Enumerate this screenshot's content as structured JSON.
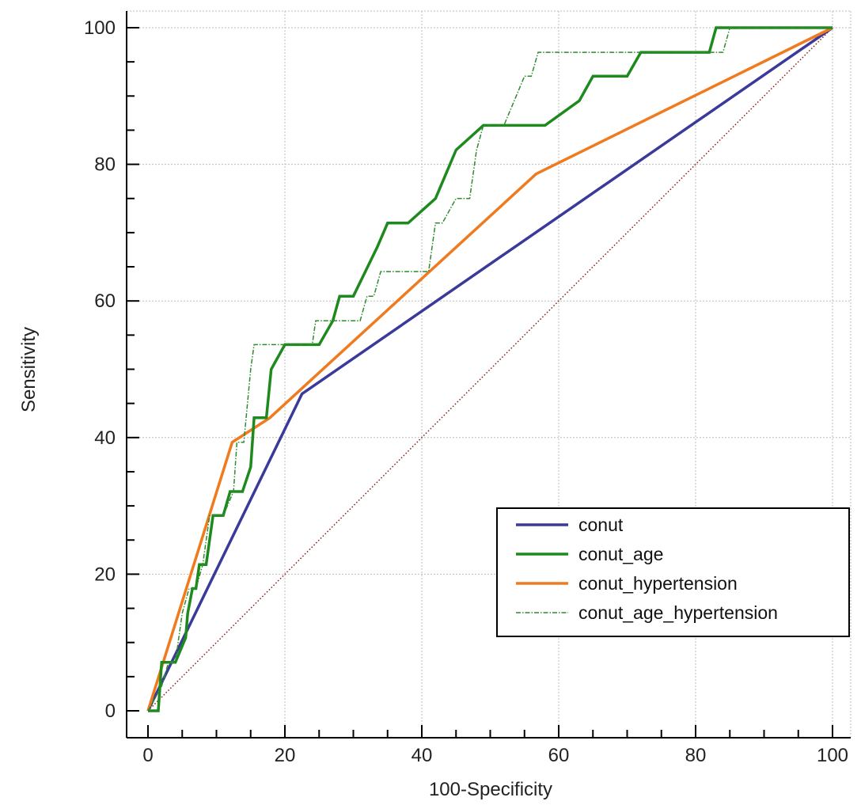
{
  "chart_data": {
    "type": "line",
    "title": "",
    "xlabel": "100-Specificity",
    "ylabel": "Sensitivity",
    "xlim": [
      0,
      100
    ],
    "ylim": [
      0,
      100
    ],
    "x_ticks": [
      "0",
      "20",
      "40",
      "60",
      "80",
      "100"
    ],
    "y_ticks": [
      "0",
      "20",
      "40",
      "60",
      "80",
      "100"
    ],
    "grid": true,
    "legend_position": "bottom-right",
    "reference_line": {
      "x": [
        0,
        100
      ],
      "y": [
        0,
        100
      ],
      "color": "#8b1a1a",
      "style": "dotted"
    },
    "series": [
      {
        "name": "conut",
        "color": "#3a3a9a",
        "style": "solid",
        "x": [
          0,
          22.5,
          100
        ],
        "y": [
          0,
          46.4,
          100
        ]
      },
      {
        "name": "conut_age",
        "color": "#1e8a1e",
        "style": "solid",
        "x": [
          0,
          1.5,
          2,
          2.5,
          3.7,
          4,
          5.5,
          5.8,
          6.5,
          7,
          7.5,
          8.5,
          9.5,
          10.3,
          11,
          12,
          12.6,
          13.8,
          15,
          15.5,
          16.5,
          17.3,
          18,
          20,
          21,
          25,
          27,
          28,
          30,
          33.5,
          35,
          36,
          38,
          42,
          45,
          49,
          58,
          63,
          65,
          69,
          70,
          72,
          82,
          83,
          100
        ],
        "y": [
          0,
          0,
          7.1,
          7.1,
          7.1,
          7.1,
          10.7,
          14.3,
          17.9,
          17.9,
          21.4,
          21.4,
          28.6,
          28.6,
          28.6,
          32.1,
          32.1,
          32.1,
          35.7,
          42.9,
          42.9,
          42.9,
          50,
          53.6,
          53.6,
          53.6,
          57.1,
          60.7,
          60.7,
          67.9,
          71.4,
          71.4,
          71.4,
          75,
          82.1,
          85.7,
          85.7,
          89.3,
          92.9,
          92.9,
          92.9,
          96.4,
          96.4,
          100,
          100
        ]
      },
      {
        "name": "conut_hypertension",
        "color": "#f07a1e",
        "style": "solid",
        "x": [
          0,
          12.3,
          17.8,
          56.7,
          100
        ],
        "y": [
          0,
          39.3,
          42.9,
          78.6,
          100
        ]
      },
      {
        "name": "conut_age_hypertension",
        "color": "#2e8b2e",
        "style": "dashdot",
        "x": [
          0,
          2,
          3,
          4,
          5,
          6,
          7,
          8,
          9,
          10,
          11,
          12.5,
          13,
          14,
          15,
          15.5,
          16,
          17,
          24,
          24.5,
          31,
          32,
          33,
          34,
          37,
          41,
          42,
          43,
          45,
          47,
          48,
          49,
          52,
          55,
          56,
          57,
          58,
          84,
          85,
          100
        ],
        "y": [
          0,
          3.6,
          7.1,
          7.1,
          14.3,
          17.9,
          17.9,
          21.4,
          28.6,
          28.6,
          28.6,
          32.1,
          39.3,
          39.3,
          50,
          53.6,
          53.6,
          53.6,
          53.6,
          57.1,
          57.1,
          60.7,
          60.7,
          64.3,
          64.3,
          64.3,
          71.4,
          71.4,
          75,
          75,
          82.1,
          85.7,
          85.7,
          92.9,
          92.9,
          96.4,
          96.4,
          96.4,
          100,
          100
        ]
      }
    ]
  }
}
